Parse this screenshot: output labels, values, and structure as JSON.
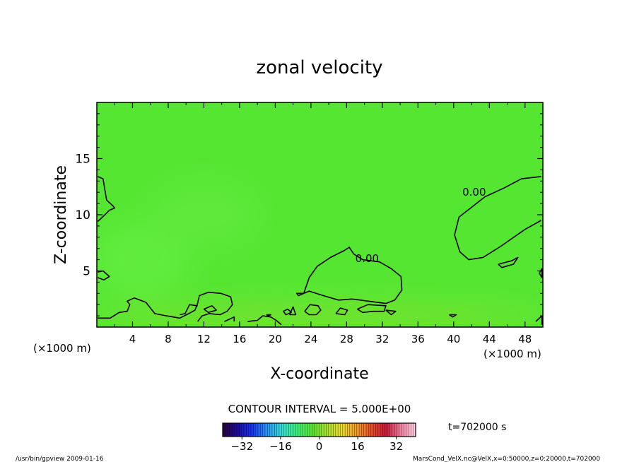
{
  "chart_data": {
    "type": "heatmap",
    "title": "zonal velocity",
    "xlabel": "X-coordinate",
    "ylabel": "Z-coordinate",
    "x_unit_left": "(×1000 m)",
    "x_unit_right": "(×1000 m)",
    "xlim": [
      0,
      50
    ],
    "ylim": [
      0,
      20
    ],
    "x_ticks": [
      4,
      8,
      12,
      16,
      20,
      24,
      28,
      32,
      36,
      40,
      44,
      48
    ],
    "y_ticks": [
      5,
      10,
      15
    ],
    "background_color": "#55e632",
    "contour_labels": [
      {
        "text": "0.00",
        "x": 42.3,
        "y": 12.0
      },
      {
        "text": "0.00",
        "x": 30.3,
        "y": 6.1
      }
    ],
    "contours": [
      [
        [
          49.8,
          13.4
        ],
        [
          47.6,
          13.2
        ],
        [
          45.7,
          12.4
        ],
        [
          43.5,
          11.6
        ],
        [
          41.9,
          10.6
        ],
        [
          40.6,
          9.8
        ],
        [
          40.1,
          8.2
        ],
        [
          40.7,
          6.7
        ],
        [
          41.7,
          6.0
        ],
        [
          43.3,
          6.2
        ],
        [
          45.3,
          7.2
        ],
        [
          48.0,
          8.7
        ],
        [
          49.8,
          9.5
        ]
      ],
      [
        [
          23.2,
          3.0
        ],
        [
          23.8,
          4.4
        ],
        [
          24.7,
          5.4
        ],
        [
          26.2,
          6.2
        ],
        [
          27.7,
          6.8
        ],
        [
          28.3,
          7.1
        ],
        [
          28.8,
          6.5
        ],
        [
          29.8,
          6.0
        ],
        [
          31.7,
          5.8
        ],
        [
          33.0,
          5.2
        ],
        [
          34.1,
          4.5
        ],
        [
          34.2,
          3.3
        ],
        [
          33.4,
          2.4
        ],
        [
          32.4,
          2.1
        ],
        [
          30.5,
          2.3
        ],
        [
          28.6,
          2.5
        ],
        [
          27.1,
          2.4
        ],
        [
          25.4,
          2.8
        ],
        [
          23.8,
          3.2
        ],
        [
          22.6,
          2.8
        ],
        [
          22.4,
          3.0
        ],
        [
          23.2,
          3.0
        ]
      ],
      [
        [
          0.1,
          13.4
        ],
        [
          0.7,
          13.2
        ],
        [
          0.9,
          12.2
        ],
        [
          1.1,
          11.3
        ],
        [
          1.8,
          10.8
        ],
        [
          2.0,
          10.6
        ],
        [
          1.4,
          10.4
        ],
        [
          0.9,
          10.0
        ],
        [
          0.1,
          9.4
        ]
      ],
      [
        [
          0.1,
          4.9
        ],
        [
          0.7,
          5.0
        ],
        [
          1.4,
          4.5
        ],
        [
          0.8,
          4.2
        ],
        [
          0.1,
          4.4
        ]
      ],
      [
        [
          45.0,
          5.6
        ],
        [
          46.5,
          5.9
        ],
        [
          47.2,
          6.2
        ],
        [
          46.7,
          5.6
        ],
        [
          45.4,
          5.3
        ],
        [
          45.0,
          5.6
        ]
      ],
      [
        [
          0.1,
          0.8
        ],
        [
          1.5,
          0.8
        ],
        [
          2.5,
          1.3
        ],
        [
          3.4,
          1.4
        ],
        [
          3.7,
          2.0
        ],
        [
          3.4,
          2.3
        ],
        [
          4.2,
          2.6
        ],
        [
          5.5,
          2.2
        ],
        [
          6.5,
          1.2
        ],
        [
          7.8,
          1.0
        ],
        [
          9.3,
          0.8
        ],
        [
          10.3,
          1.2
        ],
        [
          11.0,
          1.5
        ],
        [
          11.2,
          1.9
        ],
        [
          10.4,
          2.0
        ],
        [
          9.9,
          1.2
        ],
        [
          9.3,
          1.1
        ]
      ],
      [
        [
          11.2,
          1.8
        ],
        [
          11.5,
          2.8
        ],
        [
          12.5,
          3.1
        ],
        [
          13.9,
          3.0
        ],
        [
          15.0,
          2.7
        ],
        [
          15.2,
          2.0
        ],
        [
          14.6,
          1.4
        ],
        [
          13.8,
          1.1
        ],
        [
          12.6,
          1.2
        ],
        [
          11.8,
          1.0
        ],
        [
          11.3,
          0.5
        ]
      ],
      [
        [
          12.0,
          1.6
        ],
        [
          12.9,
          1.9
        ],
        [
          13.4,
          1.5
        ],
        [
          12.5,
          1.3
        ],
        [
          12.0,
          1.6
        ]
      ],
      [
        [
          14.3,
          0.5
        ],
        [
          15.4,
          0.9
        ],
        [
          15.4,
          0.5
        ]
      ],
      [
        [
          16.9,
          0.5
        ],
        [
          18.0,
          0.6
        ],
        [
          18.6,
          1.0
        ],
        [
          19.5,
          0.9
        ],
        [
          20.1,
          0.6
        ],
        [
          20.7,
          0.2
        ]
      ],
      [
        [
          19.0,
          1.1
        ],
        [
          19.5,
          1.1
        ],
        [
          19.2,
          1.0
        ],
        [
          19.0,
          1.1
        ]
      ],
      [
        [
          20.9,
          1.4
        ],
        [
          21.4,
          1.6
        ],
        [
          21.8,
          1.3
        ],
        [
          21.2,
          1.1
        ],
        [
          20.9,
          1.4
        ]
      ],
      [
        [
          21.6,
          1.1
        ],
        [
          22.0,
          1.8
        ],
        [
          22.3,
          1.1
        ],
        [
          21.6,
          1.1
        ]
      ],
      [
        [
          23.3,
          1.4
        ],
        [
          23.9,
          2.0
        ],
        [
          24.8,
          1.9
        ],
        [
          25.1,
          1.5
        ],
        [
          24.6,
          1.1
        ],
        [
          23.8,
          1.1
        ],
        [
          23.3,
          1.4
        ]
      ],
      [
        [
          26.8,
          1.2
        ],
        [
          27.3,
          1.7
        ],
        [
          28.1,
          1.5
        ],
        [
          27.8,
          1.1
        ],
        [
          26.8,
          1.2
        ]
      ],
      [
        [
          29.2,
          1.6
        ],
        [
          30.4,
          2.0
        ],
        [
          32.4,
          1.9
        ],
        [
          32.2,
          1.4
        ],
        [
          31.0,
          1.4
        ],
        [
          29.8,
          1.3
        ],
        [
          29.2,
          1.6
        ]
      ],
      [
        [
          32.4,
          1.5
        ],
        [
          33.5,
          1.4
        ],
        [
          33.0,
          1.1
        ],
        [
          32.4,
          1.5
        ]
      ],
      [
        [
          39.5,
          1.1
        ],
        [
          40.3,
          1.1
        ],
        [
          39.9,
          0.9
        ],
        [
          39.5,
          1.1
        ]
      ],
      [
        [
          49.6,
          4.8
        ],
        [
          49.9,
          5.2
        ],
        [
          49.9,
          4.4
        ],
        [
          49.6,
          4.8
        ]
      ],
      [
        [
          49.2,
          0.5
        ],
        [
          49.9,
          1.0
        ],
        [
          49.9,
          0.2
        ]
      ]
    ],
    "shading": [
      {
        "x": 5.0,
        "y": 6.0,
        "rx": 5.5,
        "ry": 3.5,
        "color": "#60ec3c"
      },
      {
        "x": 12.0,
        "y": 10.0,
        "rx": 6.0,
        "ry": 3.0,
        "color": "#5ee93a"
      },
      {
        "x": 25.0,
        "y": 1.0,
        "rx": 25.0,
        "ry": 1.2,
        "color": "#73e32f"
      }
    ],
    "colorbar": {
      "range": [
        -40,
        40
      ],
      "ticks": [
        -32,
        -16,
        0,
        16,
        32
      ],
      "segments": 82,
      "stops": [
        "#2a0033",
        "#1d0ba0",
        "#1836ee",
        "#2c97f5",
        "#36e0d8",
        "#3ef07a",
        "#55e632",
        "#a8e030",
        "#ecde30",
        "#f0a030",
        "#e8502a",
        "#c8183a",
        "#f07fa0",
        "#ffd6e0"
      ]
    },
    "contour_interval_label": "CONTOUR INTERVAL = 5.000E+00",
    "time_label": "t=702000 s",
    "footer_left": "/usr/bin/gpview   2009-01-16",
    "footer_right": "MarsCond_VelX.nc@VelX,x=0:50000,z=0:20000,t=702000"
  }
}
